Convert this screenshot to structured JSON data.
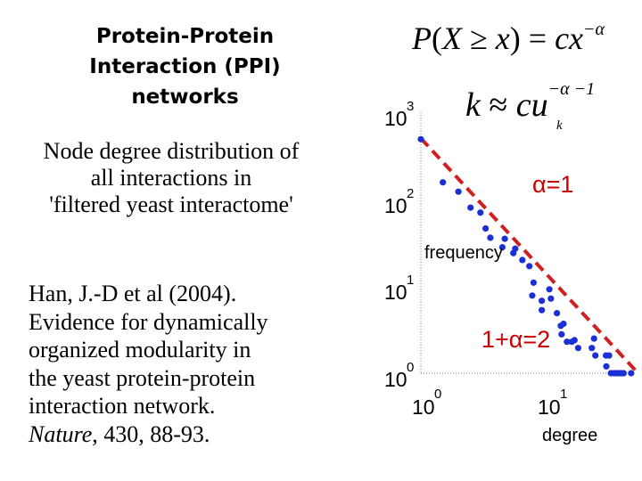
{
  "slide": {
    "title_lines": [
      "Protein-Protein",
      "Interaction (PPI)",
      "networks"
    ],
    "subtitle_lines": [
      "Node degree distribution of",
      "all interactions in",
      "'filtered yeast interactome'"
    ],
    "citation": {
      "line1": "Han, J.-D et al (2004).",
      "line2": "Evidence for dynamically",
      "line3": "organized modularity in",
      "line4": "the yeast protein-protein",
      "line5": "interaction network.",
      "journal": "Nature",
      "rest": ", 430, 88-93."
    },
    "formula1": {
      "P": "P",
      "open": "(",
      "X": "X",
      "geq": " ≥ ",
      "x": "x",
      "close": ")",
      "eq": " = ",
      "c": "c",
      "x2": "x",
      "exp": "−α"
    },
    "formula2": {
      "k": "k",
      "approx": " ≈ ",
      "c": "c",
      "u": "u",
      "exp": "−α −1",
      "sub": "k"
    }
  },
  "chart_data": {
    "type": "scatter",
    "scale": "log-log",
    "xlabel": "degree",
    "ylabel": "frequency",
    "xlim": [
      0.9,
      60
    ],
    "ylim": [
      1,
      1000
    ],
    "x_ticks": [
      {
        "base": "10",
        "exp": "0"
      },
      {
        "base": "10",
        "exp": "1"
      }
    ],
    "y_ticks": [
      {
        "base": "10",
        "exp": "3"
      },
      {
        "base": "10",
        "exp": "2"
      },
      {
        "base": "10",
        "exp": "1"
      },
      {
        "base": "10",
        "exp": "0"
      }
    ],
    "point_color": "#1a2fd6",
    "fit_color": "#d11f1f",
    "fit_line": {
      "x": [
        1,
        55
      ],
      "y": [
        500,
        1
      ]
    },
    "annotations": [
      "α=1",
      "1+α=2"
    ],
    "series": [
      {
        "name": "node degree distribution",
        "points": [
          [
            1,
            489
          ],
          [
            1.5,
            156
          ],
          [
            2,
            122
          ],
          [
            2.5,
            80
          ],
          [
            3,
            70
          ],
          [
            3.3,
            46
          ],
          [
            3.6,
            36
          ],
          [
            4.7,
            35
          ],
          [
            4.5,
            28
          ],
          [
            5.7,
            27
          ],
          [
            5.5,
            24
          ],
          [
            6.5,
            20
          ],
          [
            7.4,
            17
          ],
          [
            8,
            11
          ],
          [
            7.8,
            7.8
          ],
          [
            9.3,
            6.8
          ],
          [
            9.3,
            5.3
          ],
          [
            10.7,
            9.2
          ],
          [
            11,
            7.2
          ],
          [
            12.3,
            4.9
          ],
          [
            13.2,
            3.5
          ],
          [
            13.9,
            3.7
          ],
          [
            13.4,
            2.8
          ],
          [
            14.8,
            2.3
          ],
          [
            16.2,
            2.3
          ],
          [
            17,
            2.4
          ],
          [
            18.2,
            1.95
          ],
          [
            23.4,
            1.95
          ],
          [
            24.4,
            2.5
          ],
          [
            25,
            1.6
          ],
          [
            30.4,
            1.6
          ],
          [
            32.2,
            1.6
          ],
          [
            30.6,
            1.2
          ],
          [
            33.3,
            1.0
          ],
          [
            35.2,
            1.0
          ],
          [
            36.9,
            1.0
          ],
          [
            38.6,
            1.0
          ],
          [
            40.4,
            1.0
          ],
          [
            42.1,
            1.0
          ],
          [
            48.3,
            1.0
          ]
        ]
      }
    ]
  }
}
